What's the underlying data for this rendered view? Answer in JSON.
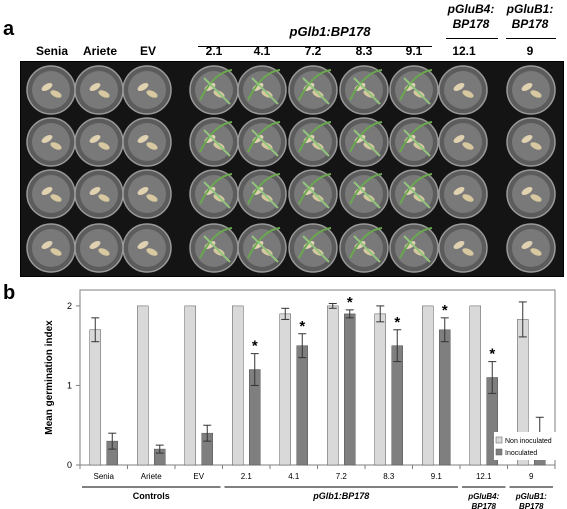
{
  "panel_a": {
    "letter": "a",
    "columns": [
      "Senia",
      "Ariete",
      "EV",
      "2.1",
      "4.1",
      "7.2",
      "8.3",
      "9.1",
      "12.1",
      "9"
    ],
    "group_main": "pGlb1:BP178",
    "group_b4": [
      "pGluB4:",
      "BP178"
    ],
    "group_b1": [
      "pGluB1:",
      "BP178"
    ],
    "rows": 4
  },
  "panel_b": {
    "letter": "b"
  },
  "chart_data": {
    "type": "bar",
    "categories": [
      "Senia",
      "Ariete",
      "EV",
      "2.1",
      "4.1",
      "7.2",
      "8.3",
      "9.1",
      "12.1",
      "9"
    ],
    "series": [
      {
        "name": "Non inoculated",
        "color": "#d9d9d9",
        "values": [
          1.7,
          2.0,
          2.0,
          2.0,
          1.9,
          2.0,
          1.9,
          2.0,
          2.0,
          1.83
        ],
        "errors": [
          0.15,
          0,
          0,
          0,
          0.07,
          0.03,
          0.1,
          0,
          0,
          0.22
        ]
      },
      {
        "name": "Inoculated",
        "color": "#7f7f7f",
        "values": [
          0.3,
          0.2,
          0.4,
          1.2,
          1.5,
          1.9,
          1.5,
          1.7,
          1.1,
          0.4
        ],
        "errors": [
          0.1,
          0.05,
          0.1,
          0.2,
          0.15,
          0.05,
          0.2,
          0.15,
          0.2,
          0.2
        ],
        "significant": [
          false,
          false,
          false,
          true,
          true,
          true,
          true,
          true,
          true,
          false
        ]
      }
    ],
    "ylabel": "Mean germination index",
    "ylim": [
      0,
      2.2
    ],
    "yticks": [
      0,
      1,
      2
    ],
    "significance_mark": "*",
    "legend_position": "bottom-right",
    "grid": false,
    "groups": [
      {
        "label": "Controls",
        "italic": false,
        "members": [
          0,
          2
        ]
      },
      {
        "label": "pGlb1:BP178",
        "italic": true,
        "members": [
          3,
          7
        ]
      },
      {
        "label": "pGluB4:\nBP178",
        "italic": true,
        "members": [
          8,
          8
        ]
      },
      {
        "label": "pGluB1:\nBP178",
        "italic": true,
        "members": [
          9,
          9
        ]
      }
    ]
  }
}
